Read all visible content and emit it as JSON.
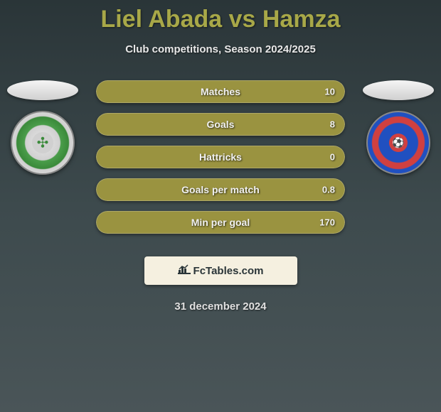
{
  "header": {
    "title": "Liel Abada vs Hamza",
    "subtitle": "Club competitions, Season 2024/2025",
    "title_color": "#a8a848"
  },
  "players": {
    "left": {
      "name": "Liel Abada",
      "club": "Celtic"
    },
    "right": {
      "name": "Hamza",
      "club": "Rangers"
    }
  },
  "stats": [
    {
      "label": "Matches",
      "value": "10",
      "fill_pct": 0
    },
    {
      "label": "Goals",
      "value": "8",
      "fill_pct": 0
    },
    {
      "label": "Hattricks",
      "value": "0",
      "fill_pct": 0
    },
    {
      "label": "Goals per match",
      "value": "0.8",
      "fill_pct": 0
    },
    {
      "label": "Min per goal",
      "value": "170",
      "fill_pct": 0
    }
  ],
  "branding": {
    "site": "FcTables.com"
  },
  "footer": {
    "date": "31 december 2024"
  },
  "colors": {
    "bar_bg": "#9a9340",
    "background_gradient": [
      "#2a3538",
      "#3d4a4d",
      "#4a5558"
    ]
  }
}
